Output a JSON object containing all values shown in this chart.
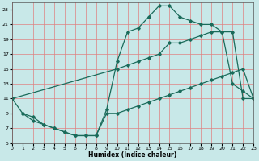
{
  "xlabel": "Humidex (Indice chaleur)",
  "background_color": "#c8e8e8",
  "grid_color": "#e08080",
  "line_color": "#1a6b5a",
  "xlim": [
    0,
    23
  ],
  "ylim": [
    5,
    24
  ],
  "xticks": [
    0,
    1,
    2,
    3,
    4,
    5,
    6,
    7,
    8,
    9,
    10,
    11,
    12,
    13,
    14,
    15,
    16,
    17,
    18,
    19,
    20,
    21,
    22,
    23
  ],
  "yticks": [
    5,
    7,
    9,
    11,
    13,
    15,
    17,
    19,
    21,
    23
  ],
  "line1_x": [
    0,
    1,
    2,
    3,
    4,
    5,
    6,
    7,
    8,
    9,
    10,
    11,
    12,
    13,
    14,
    15,
    16,
    17,
    18,
    19,
    20,
    21,
    22,
    23
  ],
  "line1_y": [
    11,
    9,
    8.5,
    7.5,
    7,
    6.5,
    6,
    6,
    6,
    9.5,
    16,
    20,
    20.5,
    22,
    23.5,
    23.5,
    22,
    21.5,
    21,
    21,
    20,
    13,
    12,
    11
  ],
  "line2_x": [
    0,
    10,
    11,
    12,
    13,
    14,
    15,
    16,
    17,
    18,
    19,
    20,
    21,
    22,
    23
  ],
  "line2_y": [
    11,
    15,
    15.5,
    16,
    16.5,
    17,
    18.5,
    18.5,
    19,
    19.5,
    20,
    20,
    20,
    11,
    11
  ],
  "line3_x": [
    1,
    2,
    3,
    4,
    5,
    6,
    7,
    8,
    9,
    10,
    11,
    12,
    13,
    14,
    15,
    16,
    17,
    18,
    19,
    20,
    21,
    22,
    23
  ],
  "line3_y": [
    9,
    8,
    7.5,
    7,
    6.5,
    6,
    6,
    6,
    9,
    9,
    9.5,
    10,
    10.5,
    11,
    11.5,
    12,
    12.5,
    13,
    13.5,
    14,
    14.5,
    15,
    11
  ]
}
